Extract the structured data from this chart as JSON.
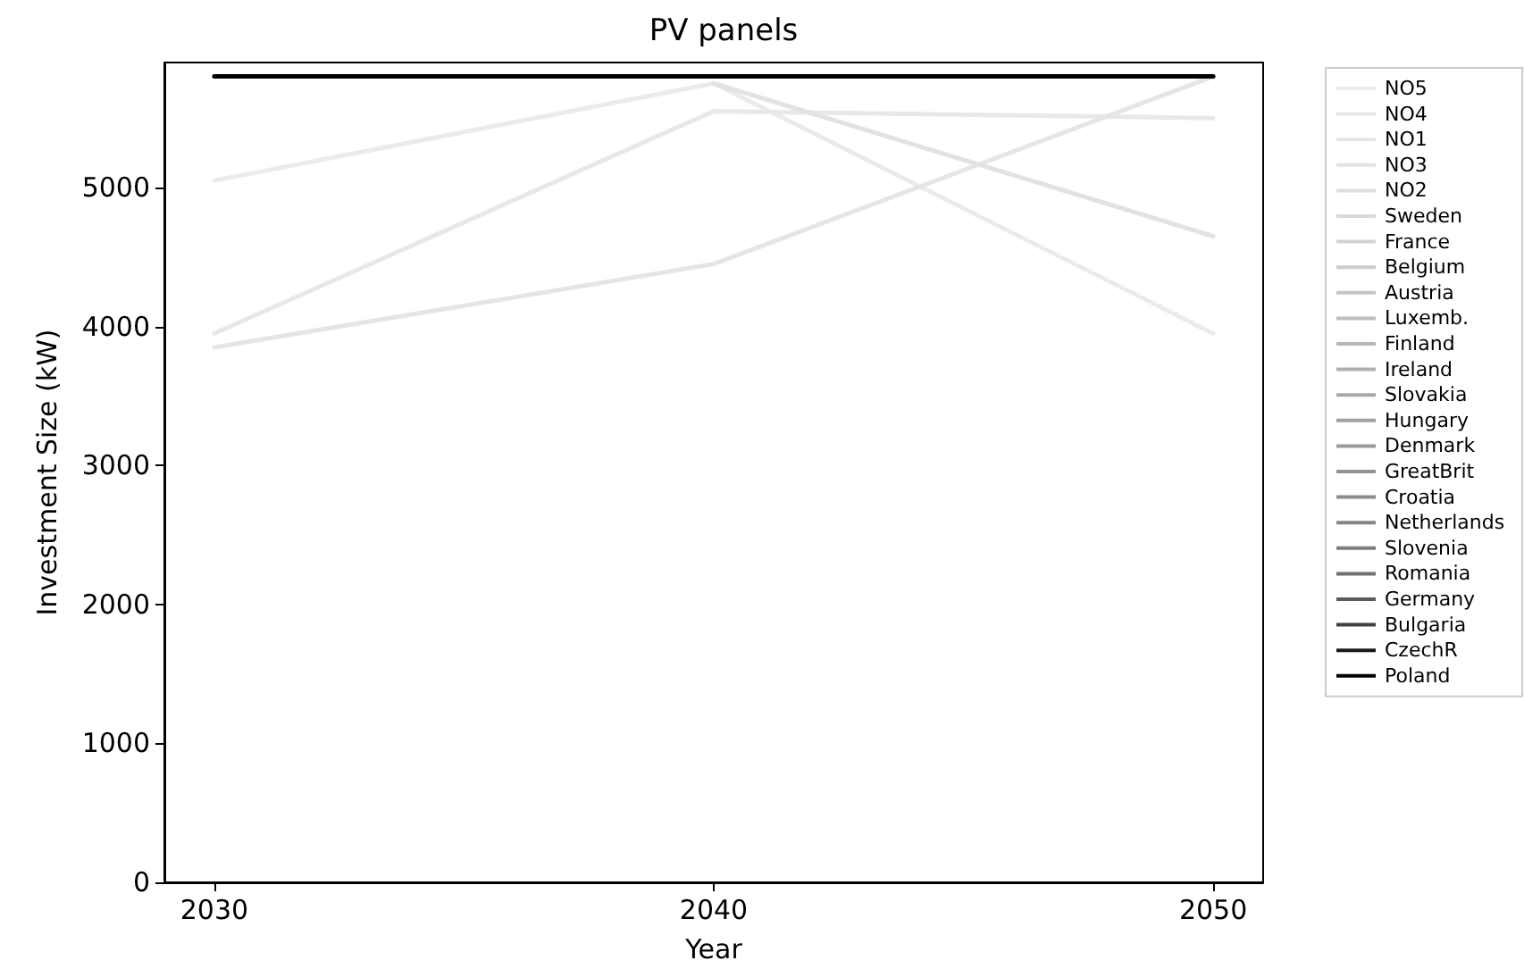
{
  "chart_data": {
    "type": "line",
    "title": "PV panels",
    "xlabel": "Year",
    "ylabel": "Investment Size (kW)",
    "x": [
      2030,
      2040,
      2050
    ],
    "xlim": [
      2029,
      2051
    ],
    "xticks": [
      2030,
      2040,
      2050
    ],
    "ylim": [
      0,
      5900
    ],
    "yticks": [
      0,
      1000,
      2000,
      3000,
      4000,
      5000
    ],
    "grid": false,
    "legend": "top right",
    "marker": "none",
    "line_style": "solid",
    "series": [
      {
        "name": "NO5",
        "color": "#ebebeb",
        "values": [
          5050,
          5750,
          3950
        ]
      },
      {
        "name": "NO4",
        "color": "#e8e8e8",
        "values": [
          3950,
          5550,
          5500
        ]
      },
      {
        "name": "NO1",
        "color": "#e5e5e5",
        "values": [
          3850,
          4450,
          5800
        ]
      },
      {
        "name": "NO3",
        "color": "#e2e2e2",
        "values": [
          null,
          5750,
          4650
        ]
      },
      {
        "name": "NO2",
        "color": "#dedede",
        "values": [
          null,
          null,
          null
        ]
      },
      {
        "name": "Sweden",
        "color": "#d9d9d9",
        "values": [
          null,
          null,
          null
        ]
      },
      {
        "name": "France",
        "color": "#d3d3d3",
        "values": [
          null,
          null,
          null
        ]
      },
      {
        "name": "Belgium",
        "color": "#cccccc",
        "values": [
          null,
          null,
          null
        ]
      },
      {
        "name": "Austria",
        "color": "#c5c5c5",
        "values": [
          null,
          null,
          null
        ]
      },
      {
        "name": "Luxemb.",
        "color": "#bebebe",
        "values": [
          null,
          null,
          null
        ]
      },
      {
        "name": "Finland",
        "color": "#b7b7b7",
        "values": [
          null,
          null,
          null
        ]
      },
      {
        "name": "Ireland",
        "color": "#b0b0b0",
        "values": [
          null,
          null,
          null
        ]
      },
      {
        "name": "Slovakia",
        "color": "#a8a8a8",
        "values": [
          null,
          null,
          null
        ]
      },
      {
        "name": "Hungary",
        "color": "#a1a1a1",
        "values": [
          null,
          null,
          null
        ]
      },
      {
        "name": "Denmark",
        "color": "#9a9a9a",
        "values": [
          null,
          null,
          null
        ]
      },
      {
        "name": "GreatBrit",
        "color": "#939393",
        "values": [
          null,
          null,
          null
        ]
      },
      {
        "name": "Croatia",
        "color": "#8c8c8c",
        "values": [
          null,
          null,
          null
        ]
      },
      {
        "name": "Netherlands",
        "color": "#858585",
        "values": [
          null,
          null,
          null
        ]
      },
      {
        "name": "Slovenia",
        "color": "#7d7d7d",
        "values": [
          null,
          null,
          null
        ]
      },
      {
        "name": "Romania",
        "color": "#707070",
        "values": [
          null,
          null,
          null
        ]
      },
      {
        "name": "Germany",
        "color": "#5a5a5a",
        "values": [
          null,
          null,
          null
        ]
      },
      {
        "name": "Bulgaria",
        "color": "#404040",
        "values": [
          null,
          null,
          null
        ]
      },
      {
        "name": "CzechR",
        "color": "#1a1a1a",
        "values": [
          null,
          null,
          null
        ]
      },
      {
        "name": "Poland",
        "color": "#000000",
        "values": [
          5800,
          5800,
          5800
        ]
      }
    ]
  }
}
